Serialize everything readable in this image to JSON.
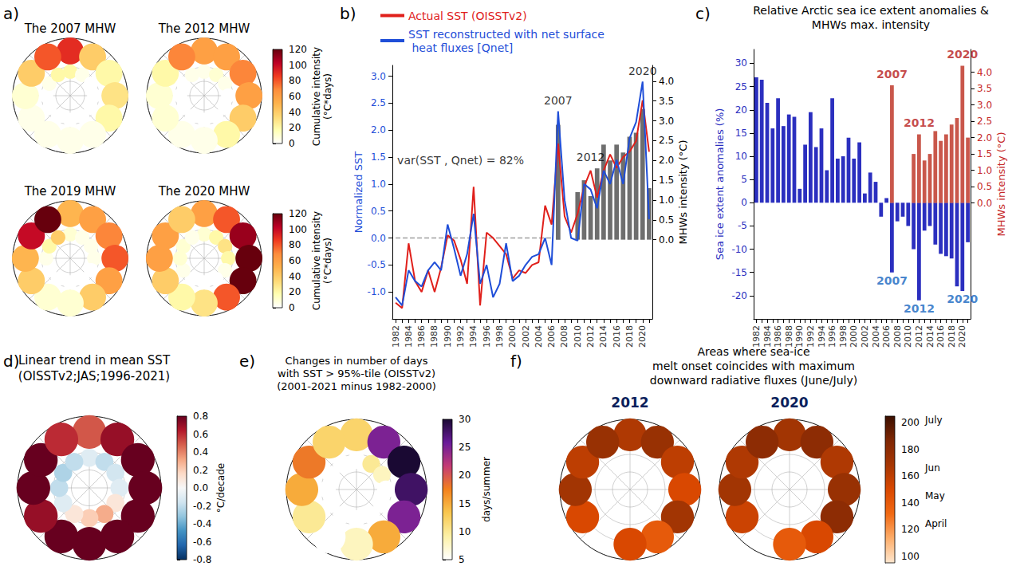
{
  "chart_data": [
    {
      "type": "map",
      "letter": "a)",
      "maps": [
        {
          "title": "The 2007 MHW",
          "sector_count": 12,
          "central_values": [
            20,
            5,
            0,
            0,
            0,
            0,
            0,
            0,
            0,
            0,
            5,
            20
          ],
          "margin_values": [
            90,
            40,
            20,
            30,
            20,
            5,
            5,
            5,
            5,
            10,
            40,
            80
          ]
        },
        {
          "title": "The 2012 MHW",
          "sector_count": 12,
          "central_values": [
            5,
            10,
            5,
            0,
            0,
            0,
            0,
            0,
            0,
            0,
            0,
            5
          ],
          "margin_values": [
            60,
            60,
            70,
            60,
            40,
            20,
            5,
            5,
            10,
            10,
            20,
            70
          ]
        },
        {
          "title": "The 2019 MHW",
          "sector_count": 12,
          "central_values": [
            10,
            5,
            5,
            5,
            0,
            0,
            0,
            0,
            0,
            5,
            20,
            40
          ],
          "margin_values": [
            50,
            60,
            70,
            80,
            60,
            40,
            10,
            10,
            40,
            50,
            100,
            120
          ]
        },
        {
          "title": "The 2020 MHW",
          "sector_count": 12,
          "central_values": [
            10,
            20,
            30,
            20,
            5,
            0,
            0,
            0,
            5,
            10,
            10,
            5
          ],
          "margin_values": [
            60,
            80,
            110,
            120,
            120,
            80,
            30,
            20,
            40,
            60,
            60,
            40
          ]
        }
      ],
      "colorbars": [
        {
          "label_lines": [
            "Cumulative intensity",
            "(°C*days)"
          ],
          "range": [
            0,
            120
          ],
          "ticks": [
            0,
            20,
            40,
            60,
            80,
            100,
            120
          ],
          "colors": [
            "#ffffff",
            "#ffffb2",
            "#fed976",
            "#feb24c",
            "#fd8d3c",
            "#f03b20",
            "#bd0026",
            "#67000d"
          ]
        },
        {
          "label_lines": [
            "Cumulative intensity",
            "(°C*days)"
          ],
          "range": [
            0,
            120
          ],
          "ticks": [
            0,
            20,
            40,
            60,
            80,
            100,
            120
          ],
          "colors": [
            "#ffffff",
            "#ffffb2",
            "#fed976",
            "#feb24c",
            "#fd8d3c",
            "#f03b20",
            "#bd0026",
            "#67000d"
          ]
        }
      ]
    },
    {
      "type": "line",
      "letter": "b)",
      "categories": [
        "1982",
        null,
        "1984",
        null,
        "1986",
        null,
        "1988",
        null,
        "1990",
        null,
        "1992",
        null,
        "1994",
        null,
        "1996",
        null,
        "1998",
        null,
        "2000",
        null,
        "2002",
        null,
        "2004",
        null,
        "2006",
        null,
        "2008",
        null,
        "2010",
        null,
        "2012",
        null,
        "2014",
        null,
        "2016",
        null,
        "2018",
        null,
        "2020",
        null
      ],
      "ylim": [
        -1.5,
        3.2
      ],
      "yticks": [
        {
          "value": -1,
          "label": "-1.0"
        },
        -0.5,
        {
          "value": 0,
          "label": "0.0"
        },
        0.5,
        {
          "value": 1,
          "label": "1.0"
        },
        1.5,
        {
          "value": 2,
          "label": "2.0"
        },
        2.5,
        {
          "value": 3,
          "label": "3.0"
        }
      ],
      "y2lim": [
        -2,
        4.4
      ],
      "y2ticks": [
        {
          "value": 0,
          "label": "0.0"
        },
        0.5,
        {
          "value": 1,
          "label": "1.0"
        },
        1.5,
        {
          "value": 2,
          "label": "2.0"
        },
        2.5,
        {
          "value": 3,
          "label": "3.0"
        },
        3.5,
        {
          "value": 4,
          "label": "4.0"
        }
      ],
      "ylabel": "Normalized SST",
      "y2label": "MHWs intensity (°C)",
      "legend": "top",
      "series": [
        {
          "type": "bar",
          "axis": "y2",
          "color": "#555555",
          "values": [
            null,
            null,
            null,
            null,
            null,
            null,
            null,
            null,
            null,
            null,
            null,
            null,
            null,
            null,
            null,
            null,
            null,
            null,
            null,
            null,
            null,
            null,
            null,
            null,
            null,
            2.9,
            null,
            null,
            1.2,
            1.5,
            1.1,
            1.8,
            2.4,
            2.0,
            2.4,
            2.2,
            2.6,
            2.7,
            3.3,
            1.3
          ]
        },
        {
          "type": "line",
          "color": "#9e9e9e",
          "line_style": "dashed",
          "values": [
            0,
            0,
            0,
            0,
            0,
            0,
            0,
            0,
            0,
            0,
            0,
            0,
            0,
            0,
            0,
            0,
            0,
            0,
            0,
            0,
            0,
            0,
            0,
            0,
            0,
            null,
            null,
            null,
            null,
            null,
            null,
            null,
            null,
            null,
            null,
            null,
            null,
            null,
            null,
            null
          ]
        },
        {
          "type": "line",
          "name": "Actual SST (OISSTv2)",
          "color": "#e0201b",
          "values": [
            -1.2,
            -1.3,
            -0.1,
            -0.8,
            -1.0,
            -0.6,
            -1.0,
            -0.55,
            0.05,
            -0.05,
            -0.4,
            -0.85,
            0.95,
            -1.25,
            0.1,
            0.0,
            -0.15,
            -0.3,
            -0.75,
            -0.6,
            -0.65,
            -0.5,
            -0.45,
            0.6,
            0.25,
            1.75,
            0.4,
            0.1,
            0.45,
            0.95,
            1.25,
            0.75,
            1.25,
            1.55,
            1.3,
            1.5,
            1.6,
            1.8,
            2.55,
            1.6
          ]
        },
        {
          "type": "line",
          "name": "SST reconstructed with net surface heat fluxes [Qnet]",
          "color": "#1f4ed8",
          "values": [
            -1.1,
            -1.25,
            -0.6,
            -0.8,
            -0.9,
            -0.6,
            -0.45,
            -0.6,
            0.25,
            -0.2,
            -0.7,
            -0.3,
            0.45,
            -0.85,
            -0.5,
            -1.1,
            -0.85,
            -0.1,
            -0.8,
            -0.7,
            -0.5,
            -0.35,
            -0.3,
            0.0,
            -0.5,
            2.35,
            0.7,
            0.0,
            -0.05,
            1.0,
            0.9,
            0.55,
            1.25,
            1.0,
            1.45,
            1.0,
            1.85,
            2.15,
            2.9,
            0.35
          ]
        }
      ],
      "annotations": [
        {
          "text": "var(SST , Qnet) = 82%",
          "x": 10,
          "y": 1.3,
          "color": "#000000"
        },
        {
          "text": "2007",
          "x": 25,
          "y": 2.4,
          "color": "#000000"
        },
        {
          "text": "2012",
          "x": 30,
          "y": 1.35,
          "color": "#000000"
        },
        {
          "text": "2020",
          "x": 38,
          "y": 2.95,
          "color": "#000000"
        }
      ]
    },
    {
      "type": "bar",
      "letter": "c)",
      "title": "Relative Arctic sea ice extent anomalies & MHWs max. intensity",
      "categories": [
        "1982",
        null,
        "1984",
        null,
        "1986",
        null,
        "1988",
        null,
        "1990",
        null,
        "1992",
        null,
        "1994",
        null,
        "1996",
        null,
        "1998",
        null,
        "2000",
        null,
        "2002",
        null,
        "2004",
        null,
        "2006",
        null,
        "2008",
        null,
        "2010",
        null,
        "2012",
        null,
        "2014",
        null,
        "2016",
        null,
        "2018",
        null,
        "2020",
        null
      ],
      "ylim": [
        -25,
        33
      ],
      "yticks": [
        -20,
        -15,
        -10,
        -5,
        0,
        5,
        10,
        15,
        20,
        25,
        30
      ],
      "y2lim": [
        -3.55,
        4.7
      ],
      "y2ticks": [
        {
          "value": 0,
          "label": "0.0"
        },
        0.5,
        {
          "value": 1,
          "label": "1.0"
        },
        1.5,
        {
          "value": 2,
          "label": "2.0"
        },
        2.5,
        {
          "value": 3,
          "label": "3.0"
        },
        3.5,
        {
          "value": 4,
          "label": "4.0"
        }
      ],
      "ylabel": "Sea ice extent anomalies (%)",
      "y2label": "MHWs intensity (°C)",
      "series": [
        {
          "type": "bar",
          "color": "#2b2fbf",
          "values": [
            27,
            26.5,
            21.5,
            16,
            22.5,
            16.5,
            19,
            18.5,
            3,
            12.5,
            19.5,
            12,
            16,
            7,
            22.5,
            9.5,
            10,
            14,
            9.5,
            13,
            2,
            6.5,
            4.5,
            -3,
            1,
            -15,
            -4,
            -3,
            -5,
            -10,
            -21,
            -6,
            -5,
            -9,
            -11,
            -11.5,
            -12,
            -18,
            -19,
            -8.5
          ]
        },
        {
          "type": "bar",
          "axis": "y2",
          "color": "#c0392b",
          "values": [
            null,
            null,
            null,
            null,
            null,
            null,
            null,
            null,
            null,
            null,
            null,
            null,
            null,
            null,
            null,
            null,
            null,
            null,
            null,
            null,
            null,
            null,
            null,
            null,
            null,
            3.6,
            null,
            null,
            null,
            1.5,
            2.1,
            1.3,
            1.5,
            2.2,
            1.9,
            2.1,
            2.4,
            2.6,
            4.2,
            2.0
          ]
        }
      ],
      "annotations": [
        {
          "text": "2007",
          "x": 25,
          "y": 3.7,
          "axis": "y2",
          "color": "#b71c1c"
        },
        {
          "text": "2012",
          "x": 30,
          "y": 2.2,
          "axis": "y2",
          "color": "#b71c1c"
        },
        {
          "text": "2020",
          "x": 38,
          "y": 4.3,
          "axis": "y2",
          "color": "#b71c1c"
        },
        {
          "text": "2007",
          "x": 25,
          "y": -15,
          "color": "#1565c0"
        },
        {
          "text": "2012",
          "x": 30,
          "y": -21,
          "color": "#1565c0"
        },
        {
          "text": "2020",
          "x": 38,
          "y": -19,
          "color": "#1565c0"
        }
      ]
    },
    {
      "type": "map",
      "letter": "d)",
      "title": "Linear trend in mean SST",
      "subtitle": "(OISSTv2;JAS;1996-2021)",
      "maps": [
        {
          "sector_count": 12,
          "central_values": [
            -0.1,
            -0.2,
            -0.15,
            -0.1,
            0.1,
            0.3,
            0.2,
            0.1,
            -0.1,
            -0.2,
            -0.25,
            -0.2
          ],
          "margin_values": [
            0.5,
            0.7,
            0.8,
            0.8,
            0.8,
            0.8,
            0.8,
            0.8,
            0.7,
            0.8,
            0.8,
            0.6
          ]
        }
      ],
      "colorbars": [
        {
          "label_lines": [
            "°C/decade"
          ],
          "range": [
            -0.8,
            0.8
          ],
          "ticks": [
            -0.8,
            -0.6,
            -0.4,
            -0.2,
            {
              "value": 0,
              "label": "0.0"
            },
            0.2,
            0.4,
            0.6,
            0.8
          ],
          "colors": [
            "#053061",
            "#2166ac",
            "#4393c3",
            "#92c5de",
            "#d1e5f0",
            "#f7f7f7",
            "#fddbc7",
            "#f4a582",
            "#d6604d",
            "#b2182b",
            "#67001f"
          ]
        }
      ]
    },
    {
      "type": "map",
      "letter": "e)",
      "title_lines": [
        "Changes in number of days",
        "with SST > 95%-tile (OISSTv2)",
        "(2001-2021 minus 1982-2000)"
      ],
      "maps": [
        {
          "sector_count": 12,
          "central_values": [
            5,
            10,
            8,
            5,
            5,
            5,
            5,
            5,
            5,
            5,
            5,
            5
          ],
          "margin_values": [
            12,
            25,
            30,
            28,
            25,
            15,
            8,
            5,
            10,
            15,
            18,
            12
          ]
        }
      ],
      "colorbars": [
        {
          "label_lines": [
            "days/summer"
          ],
          "range": [
            5,
            30
          ],
          "ticks": [
            5,
            10,
            15,
            20,
            25,
            30
          ],
          "colors": [
            "#ffffff",
            "#fcf1a6",
            "#f9c74f",
            "#f3811d",
            "#c43c75",
            "#6a1b9a",
            "#1a0933"
          ]
        }
      ]
    },
    {
      "type": "map",
      "letter": "f)",
      "title_lines": [
        "Areas where sea-ice",
        "melt onset coincides with maximum",
        "downward radiative fluxes (June/July)"
      ],
      "maps": [
        {
          "title": "2012",
          "sector_count": 12,
          "central_values": [
            null,
            null,
            null,
            null,
            null,
            null,
            null,
            null,
            null,
            null,
            null,
            null
          ],
          "margin_values": [
            165,
            175,
            160,
            150,
            170,
            140,
            150,
            null,
            150,
            170,
            160,
            175
          ]
        },
        {
          "title": "2020",
          "sector_count": 12,
          "central_values": [
            null,
            null,
            null,
            null,
            null,
            null,
            null,
            null,
            null,
            null,
            null,
            null
          ],
          "margin_values": [
            170,
            180,
            165,
            175,
            180,
            150,
            140,
            null,
            155,
            170,
            165,
            180
          ]
        }
      ],
      "colorbars": [
        {
          "range": [
            95,
            205
          ],
          "ticks": [
            100,
            120,
            140,
            160,
            180,
            200
          ],
          "month_ticks": [
            {
              "value": 124,
              "label": "April"
            },
            {
              "value": 145,
              "label": "May"
            },
            {
              "value": 166,
              "label": "Jun"
            },
            {
              "value": 202,
              "label": "July"
            }
          ],
          "colors": [
            "#fee6ce",
            "#fdae6b",
            "#f16913",
            "#d94801",
            "#a63603",
            "#7f2704",
            "#3b0f00"
          ]
        }
      ]
    }
  ]
}
